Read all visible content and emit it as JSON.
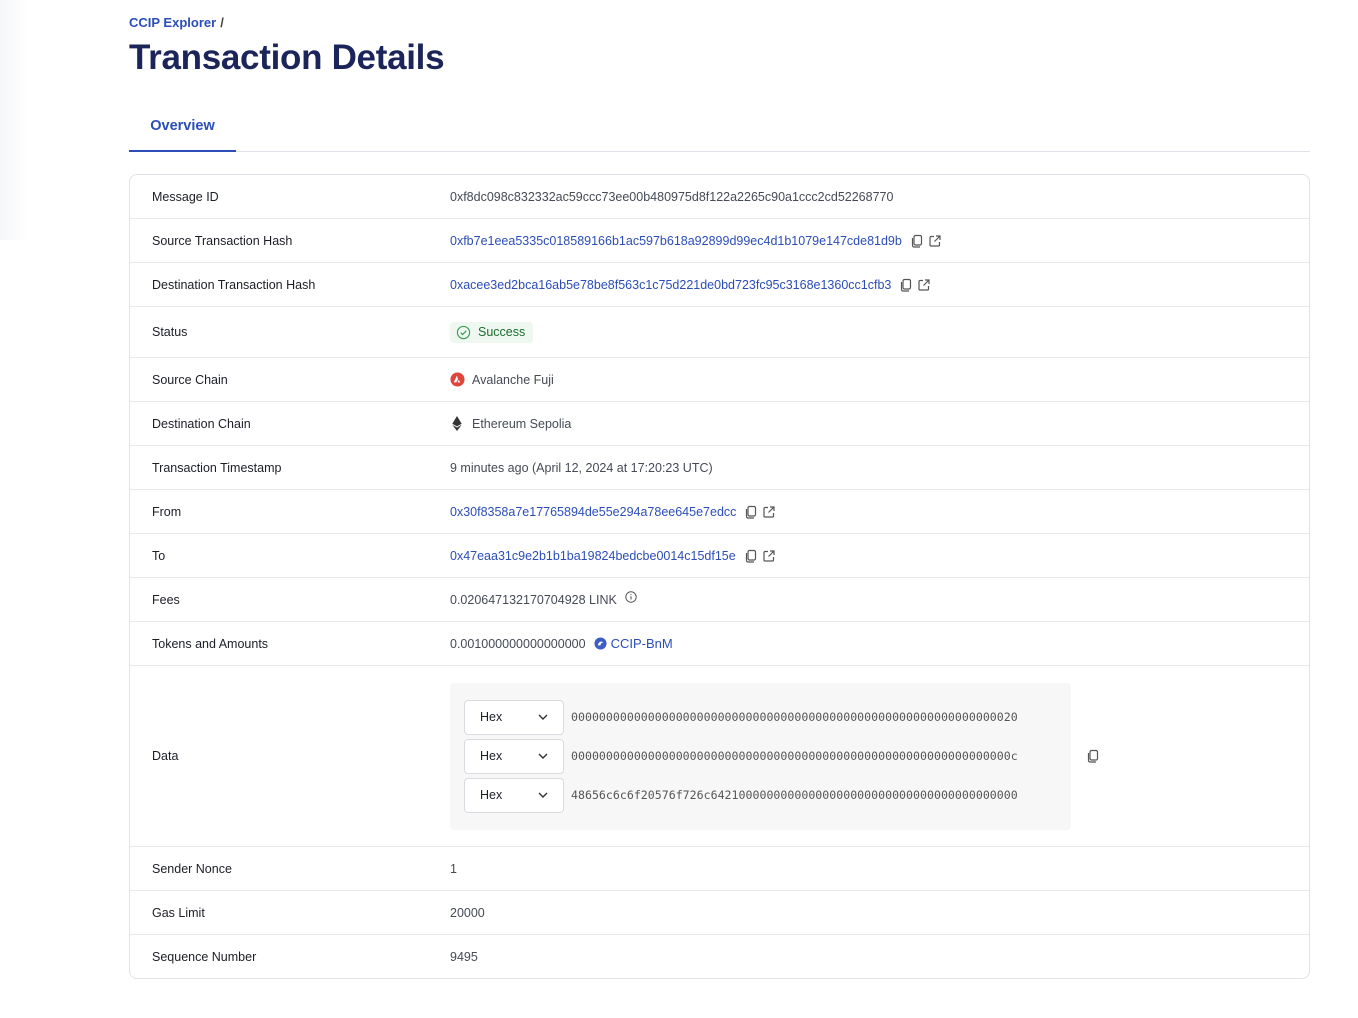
{
  "breadcrumb": {
    "root": "CCIP Explorer",
    "separator": "/"
  },
  "title": "Transaction Details",
  "tabs": [
    {
      "label": "Overview",
      "active": true
    }
  ],
  "accent": "#2b4db7",
  "rows": {
    "message_id": {
      "label": "Message ID",
      "value": "0xf8dc098c832332ac59ccc73ee00b480975d8f122a2265c90a1ccc2cd52268770"
    },
    "source_tx": {
      "label": "Source Transaction Hash",
      "value": "0xfb7e1eea5335c018589166b1ac597b618a92899d99ec4d1b1079e147cde81d9b"
    },
    "dest_tx": {
      "label": "Destination Transaction Hash",
      "value": "0xacee3ed2bca16ab5e78be8f563c1c75d221de0bd723fc95c3168e1360cc1cfb3"
    },
    "status": {
      "label": "Status",
      "value": "Success",
      "color": "#1e6b2f"
    },
    "source_chain": {
      "label": "Source Chain",
      "value": "Avalanche Fuji",
      "icon": "avalanche-icon"
    },
    "dest_chain": {
      "label": "Destination Chain",
      "value": "Ethereum Sepolia",
      "icon": "ethereum-icon"
    },
    "timestamp": {
      "label": "Transaction Timestamp",
      "value": "9 minutes ago (April 12, 2024 at 17:20:23 UTC)"
    },
    "from": {
      "label": "From",
      "value": "0x30f8358a7e17765894de55e294a78ee645e7edcc"
    },
    "to": {
      "label": "To",
      "value": "0x47eaa31c9e2b1b1ba19824bedcbe0014c15df15e"
    },
    "fees": {
      "label": "Fees",
      "value": "0.020647132170704928 LINK"
    },
    "tokens": {
      "label": "Tokens and Amounts",
      "amount": "0.001000000000000000",
      "token": "CCIP-BnM"
    },
    "data": {
      "label": "Data",
      "lines": [
        {
          "format": "Hex",
          "value": "0000000000000000000000000000000000000000000000000000000000000020"
        },
        {
          "format": "Hex",
          "value": "000000000000000000000000000000000000000000000000000000000000000c"
        },
        {
          "format": "Hex",
          "value": "48656c6c6f20576f726c64210000000000000000000000000000000000000000"
        }
      ]
    },
    "nonce": {
      "label": "Sender Nonce",
      "value": "1"
    },
    "gas": {
      "label": "Gas Limit",
      "value": "20000"
    },
    "sequence": {
      "label": "Sequence Number",
      "value": "9495"
    }
  }
}
